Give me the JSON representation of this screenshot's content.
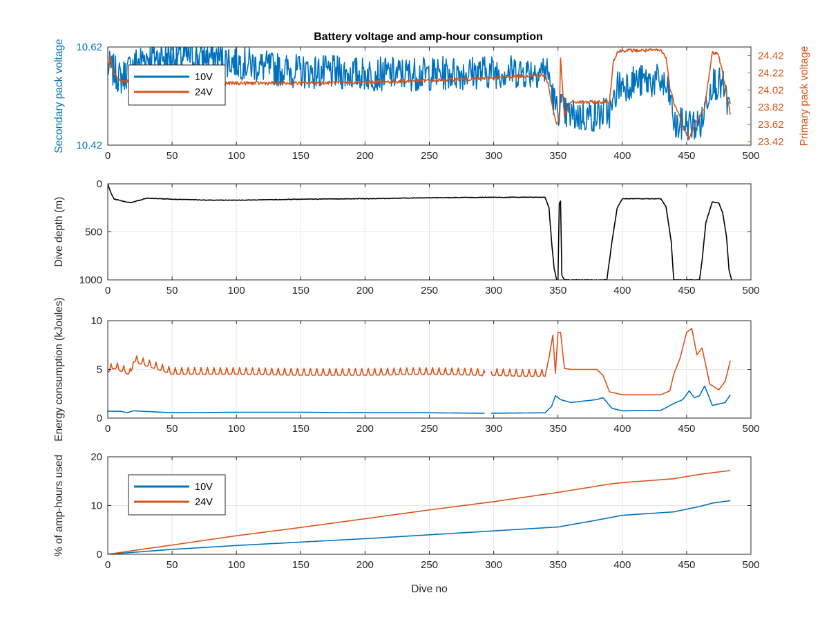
{
  "colors": {
    "blue": "#0072BD",
    "orange": "#D95319",
    "black": "#000000",
    "axis": "#262626",
    "grid": "#e6e6e6"
  },
  "figure_title": "Battery voltage and amp-hour consumption",
  "chart_data": [
    {
      "type": "line",
      "id": "voltage",
      "title": "Battery voltage and amp-hour consumption",
      "xlabel": "",
      "ylabel": "Secondary pack voltage",
      "ylabel_right": "Primary pack voltage",
      "xlim": [
        0,
        500
      ],
      "ylim": [
        10.42,
        10.62
      ],
      "ylim_right": [
        23.38,
        24.52
      ],
      "xticks": [
        0,
        50,
        100,
        150,
        200,
        250,
        300,
        350,
        400,
        450,
        500
      ],
      "yticks": [
        10.42,
        10.62
      ],
      "yticks_right": [
        23.42,
        23.62,
        23.82,
        24.02,
        24.22,
        24.42
      ],
      "grid": true,
      "legend": {
        "position": "top-left",
        "entries": [
          "10V",
          "24V"
        ]
      },
      "series": [
        {
          "name": "10V",
          "axis": "left",
          "color_key": "blue",
          "noise": 0.035,
          "x": [
            0,
            5,
            10,
            15,
            20,
            30,
            40,
            60,
            80,
            100,
            120,
            130,
            150,
            200,
            250,
            300,
            330,
            340,
            343,
            346,
            349,
            352,
            355,
            360,
            380,
            392,
            396,
            410,
            430,
            437,
            441,
            448,
            455,
            462,
            466,
            470,
            478,
            484
          ],
          "y": [
            10.58,
            10.57,
            10.555,
            10.57,
            10.585,
            10.6,
            10.6,
            10.6,
            10.6,
            10.59,
            10.58,
            10.575,
            10.57,
            10.565,
            10.565,
            10.57,
            10.57,
            10.575,
            10.56,
            10.52,
            10.49,
            10.5,
            10.485,
            10.48,
            10.48,
            10.49,
            10.54,
            10.55,
            10.55,
            10.52,
            10.455,
            10.465,
            10.46,
            10.465,
            10.52,
            10.55,
            10.54,
            10.485
          ]
        },
        {
          "name": "24V",
          "axis": "right",
          "color_key": "orange",
          "noise": 0.02,
          "x": [
            0,
            2,
            5,
            10,
            20,
            30,
            40,
            50,
            100,
            150,
            200,
            250,
            300,
            330,
            340,
            343,
            346,
            349,
            351,
            352,
            355,
            360,
            390,
            393,
            396,
            400,
            430,
            434,
            437,
            440,
            444,
            448,
            452,
            456,
            460,
            464,
            467,
            470,
            474,
            477,
            481,
            484
          ],
          "y": [
            24.25,
            24.4,
            24.2,
            24.12,
            24.12,
            24.09,
            24.07,
            24.08,
            24.1,
            24.1,
            24.11,
            24.13,
            24.16,
            24.19,
            24.19,
            24.05,
            23.8,
            23.62,
            23.7,
            24.38,
            23.72,
            23.88,
            23.88,
            24.35,
            24.46,
            24.48,
            24.48,
            24.4,
            24.05,
            23.88,
            23.75,
            23.55,
            23.46,
            23.6,
            23.72,
            23.8,
            24.15,
            24.45,
            24.45,
            24.3,
            23.98,
            23.75
          ]
        }
      ]
    },
    {
      "type": "line",
      "id": "depth",
      "xlabel": "",
      "ylabel": "Dive depth (m)",
      "xlim": [
        0,
        500
      ],
      "ylim": [
        0,
        1000
      ],
      "y_reversed": true,
      "xticks": [
        0,
        50,
        100,
        150,
        200,
        250,
        300,
        350,
        400,
        450,
        500
      ],
      "yticks": [
        0,
        500,
        1000
      ],
      "ytick_labels": [
        "0",
        "500",
        "1000"
      ],
      "grid": true,
      "series": [
        {
          "name": "",
          "color_key": "black",
          "noise": 3,
          "x": [
            0,
            2,
            5,
            10,
            15,
            18,
            25,
            30,
            50,
            80,
            100,
            150,
            200,
            250,
            300,
            340,
            343,
            345,
            347,
            349,
            350,
            351,
            352,
            353,
            355,
            380,
            388,
            392,
            396,
            400,
            430,
            434,
            438,
            440,
            442,
            450,
            455,
            460,
            462,
            465,
            470,
            475,
            478,
            481,
            483,
            485
          ],
          "y": [
            0,
            80,
            160,
            175,
            190,
            195,
            170,
            150,
            160,
            170,
            170,
            160,
            155,
            145,
            140,
            140,
            250,
            600,
            880,
            1000,
            1000,
            200,
            180,
            950,
            1000,
            1000,
            1000,
            600,
            250,
            155,
            155,
            240,
            600,
            1000,
            1000,
            1000,
            1000,
            1000,
            800,
            400,
            190,
            200,
            300,
            550,
            900,
            1000
          ]
        }
      ]
    },
    {
      "type": "line",
      "id": "energy",
      "xlabel": "",
      "ylabel": "Energy consumption (kJoules)",
      "xlim": [
        0,
        500
      ],
      "ylim": [
        0,
        10
      ],
      "xticks": [
        0,
        50,
        100,
        150,
        200,
        250,
        300,
        350,
        400,
        450,
        500
      ],
      "yticks": [
        0,
        5,
        10
      ],
      "grid": true,
      "series": [
        {
          "name": "24V",
          "color_key": "orange",
          "spiky_until": 340,
          "spike_period": 5,
          "spike_height": 0.7,
          "gaps": [
            [
              293,
              298
            ]
          ],
          "x": [
            0,
            5,
            18,
            20,
            50,
            100,
            150,
            200,
            250,
            290,
            293,
            298,
            320,
            340,
            343,
            346,
            348,
            350,
            352,
            355,
            360,
            380,
            385,
            390,
            400,
            430,
            437,
            440,
            445,
            450,
            454,
            458,
            462,
            468,
            475,
            480,
            484
          ],
          "y": [
            4.7,
            5.1,
            4.4,
            5.8,
            4.5,
            4.5,
            4.4,
            4.4,
            4.5,
            4.4,
            4.2,
            4.4,
            4.3,
            4.3,
            6.2,
            8.5,
            4.6,
            8.8,
            8.8,
            5.1,
            5.0,
            5.0,
            4.4,
            2.7,
            2.4,
            2.4,
            2.8,
            4.5,
            6.2,
            8.8,
            9.2,
            6.5,
            7.2,
            3.5,
            2.9,
            3.8,
            5.9
          ]
        },
        {
          "name": "10V",
          "color_key": "blue",
          "gaps": [
            [
              293,
              298
            ]
          ],
          "x": [
            0,
            10,
            15,
            20,
            50,
            100,
            150,
            200,
            250,
            293,
            298,
            340,
            345,
            348,
            352,
            360,
            380,
            385,
            392,
            400,
            430,
            440,
            447,
            452,
            456,
            460,
            464,
            470,
            480,
            484
          ],
          "y": [
            0.7,
            0.7,
            0.55,
            0.75,
            0.55,
            0.6,
            0.6,
            0.55,
            0.55,
            0.5,
            0.5,
            0.55,
            1.2,
            2.3,
            1.9,
            1.6,
            1.9,
            2.1,
            1.0,
            0.75,
            0.8,
            1.5,
            1.9,
            2.8,
            2.1,
            2.3,
            3.3,
            1.3,
            1.6,
            2.4
          ]
        }
      ]
    },
    {
      "type": "line",
      "id": "amphours",
      "xlabel": "Dive no",
      "ylabel": "% of amp-hours used",
      "xlim": [
        0,
        500
      ],
      "ylim": [
        0,
        20
      ],
      "xticks": [
        0,
        50,
        100,
        150,
        200,
        250,
        300,
        350,
        400,
        450,
        500
      ],
      "yticks": [
        0,
        10,
        20
      ],
      "grid": true,
      "legend": {
        "position": "top-left",
        "entries": [
          "10V",
          "24V"
        ]
      },
      "series": [
        {
          "name": "10V",
          "color_key": "blue",
          "x": [
            0,
            50,
            100,
            150,
            200,
            250,
            300,
            350,
            380,
            400,
            440,
            460,
            470,
            484
          ],
          "y": [
            0,
            1.0,
            1.8,
            2.5,
            3.2,
            4.0,
            4.8,
            5.6,
            7.0,
            8.0,
            8.7,
            9.8,
            10.5,
            11.0
          ]
        },
        {
          "name": "24V",
          "color_key": "orange",
          "x": [
            0,
            50,
            100,
            150,
            200,
            250,
            300,
            350,
            390,
            400,
            440,
            460,
            484
          ],
          "y": [
            0,
            1.9,
            3.8,
            5.5,
            7.3,
            9.1,
            10.8,
            12.7,
            14.4,
            14.7,
            15.5,
            16.4,
            17.2
          ]
        }
      ]
    }
  ]
}
